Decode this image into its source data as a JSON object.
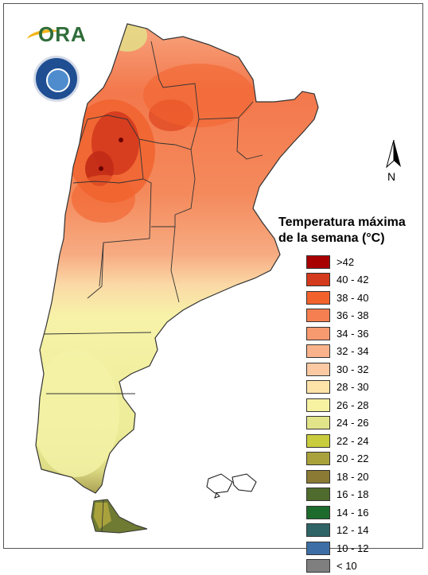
{
  "legend": {
    "title_line1": "Temperatura máxima",
    "title_line2": "de la semana (°C)",
    "classes": [
      {
        "label": ">42",
        "color": "#a80000"
      },
      {
        "label": "40 - 42",
        "color": "#d43a1d"
      },
      {
        "label": "38 - 40",
        "color": "#f2622d"
      },
      {
        "label": "36 - 38",
        "color": "#f57f50"
      },
      {
        "label": "34 - 36",
        "color": "#f89a70"
      },
      {
        "label": "32 - 34",
        "color": "#f9b38c"
      },
      {
        "label": "30 - 32",
        "color": "#fbc9a2"
      },
      {
        "label": "28 - 30",
        "color": "#fde3a8"
      },
      {
        "label": "26 - 28",
        "color": "#f6f2a2"
      },
      {
        "label": "24 - 26",
        "color": "#e2e489"
      },
      {
        "label": "22 - 24",
        "color": "#c9cc3c"
      },
      {
        "label": "20 - 22",
        "color": "#a9a23c"
      },
      {
        "label": "18 - 20",
        "color": "#8a7a33"
      },
      {
        "label": "16 - 18",
        "color": "#4f6b2d"
      },
      {
        "label": "14 - 16",
        "color": "#1d6b2c"
      },
      {
        "label": "12 - 14",
        "color": "#2e6466"
      },
      {
        "label": "10 - 12",
        "color": "#3d6ea6"
      },
      {
        "label": "< 10",
        "color": "#7f7f7f"
      }
    ]
  },
  "logo": {
    "text": "ORA"
  },
  "north_arrow": {
    "label": "N"
  }
}
